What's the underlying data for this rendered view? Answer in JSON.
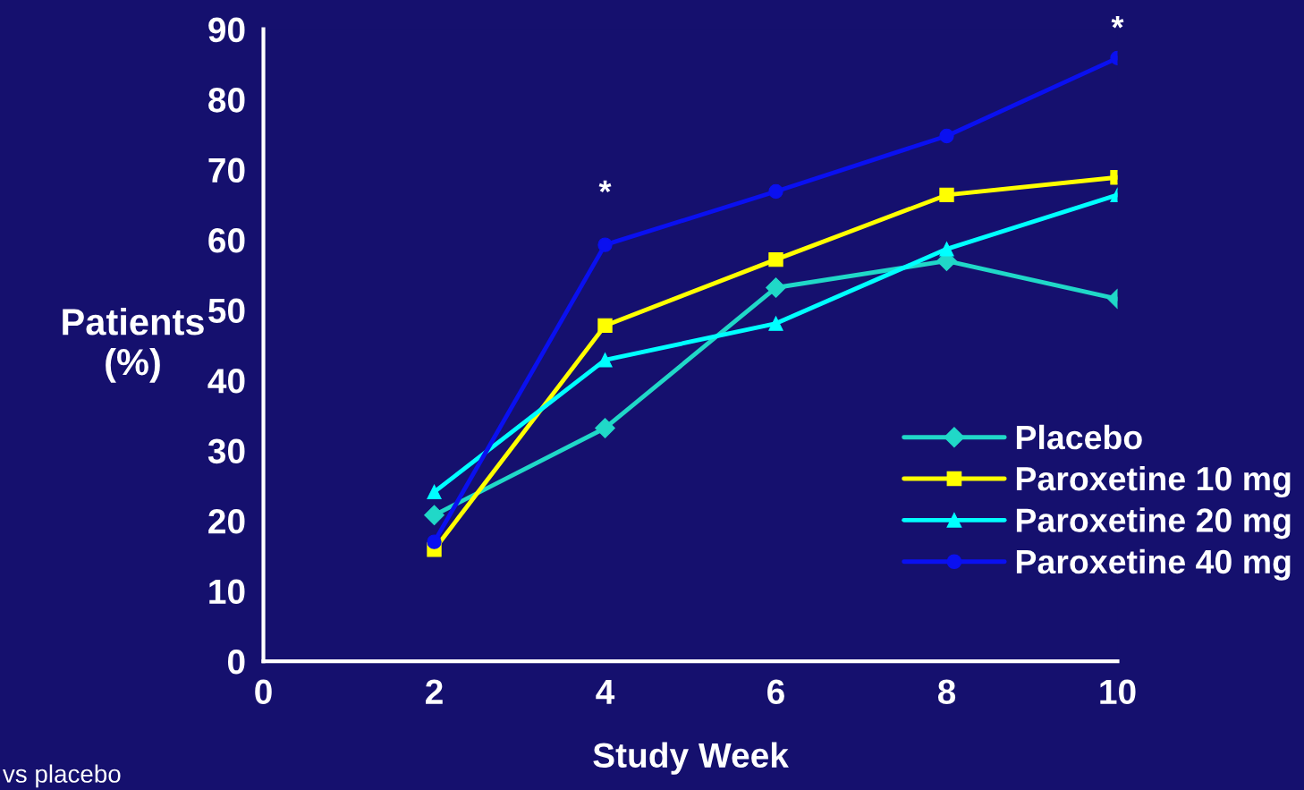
{
  "chart_data": {
    "type": "line",
    "xlabel": "Study Week",
    "ylabel": "Patients\n(%)",
    "x": [
      2,
      4,
      6,
      8,
      10
    ],
    "series": [
      {
        "name": "Placebo",
        "color": "#20d8c8",
        "marker": "diamond",
        "values": [
          20.8,
          33.2,
          53.2,
          57.0,
          51.6
        ]
      },
      {
        "name": "Paroxetine 10 mg",
        "color": "#ffff00",
        "marker": "square",
        "values": [
          15.9,
          47.8,
          57.2,
          66.4,
          68.9
        ]
      },
      {
        "name": "Paroxetine 20 mg",
        "color": "#00ffff",
        "marker": "triangle",
        "values": [
          24.1,
          42.9,
          48.1,
          58.7,
          66.4
        ]
      },
      {
        "name": "Paroxetine 40 mg",
        "color": "#0a10f0",
        "marker": "circle",
        "values": [
          17,
          59.3,
          66.9,
          74.8,
          85.9
        ]
      }
    ],
    "xlim": [
      0,
      10
    ],
    "xticks": [
      0,
      2,
      4,
      6,
      8,
      10
    ],
    "ylim": [
      0,
      90
    ],
    "yticks": [
      0,
      10,
      20,
      30,
      40,
      50,
      60,
      70,
      80,
      90
    ],
    "grid": false,
    "legend": "bottom right",
    "line_style": "solid",
    "annotations": [
      "*",
      "*",
      "vs placebo"
    ]
  }
}
